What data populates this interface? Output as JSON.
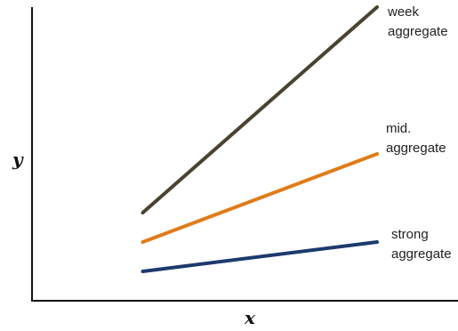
{
  "chart_data": {
    "type": "line",
    "xlabel": "x",
    "ylabel": "y",
    "xlim": [
      0,
      10
    ],
    "ylim": [
      0,
      10
    ],
    "grid": false,
    "legend": "inline-right",
    "series": [
      {
        "name": "week aggregate",
        "label_lines": [
          "week",
          "aggregate"
        ],
        "x": [
          2.6,
          8.1
        ],
        "y": [
          3.0,
          10.0
        ],
        "color": "#4a4330"
      },
      {
        "name": "mid. aggregate",
        "label_lines": [
          "mid.",
          "aggregate"
        ],
        "x": [
          2.6,
          8.1
        ],
        "y": [
          2.0,
          5.0
        ],
        "color": "#e07b1a"
      },
      {
        "name": "strong aggregate",
        "label_lines": [
          "strong",
          "aggregate"
        ],
        "x": [
          2.6,
          8.1
        ],
        "y": [
          1.0,
          2.0
        ],
        "color": "#1c3a6e"
      }
    ]
  }
}
